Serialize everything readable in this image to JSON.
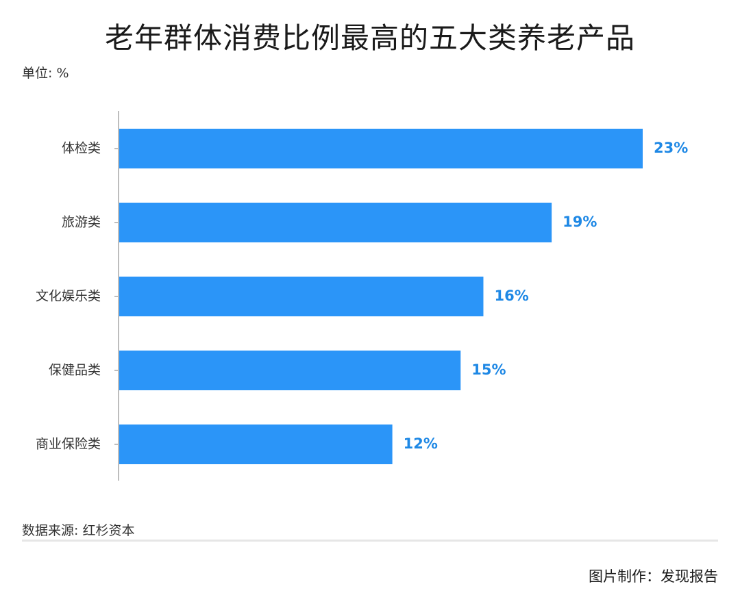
{
  "title": "老年群体消费比例最高的五大类养老产品",
  "unit": "单位: %",
  "source": "数据来源: 红杉资本",
  "credit": "图片制作：发现报告",
  "colors": {
    "bar": "#2b95f8",
    "label": "#1e88e5",
    "axis": "#bdbdbd"
  },
  "chart_data": {
    "type": "bar",
    "orientation": "horizontal",
    "categories": [
      "体检类",
      "旅游类",
      "文化娱乐类",
      "保健品类",
      "商业保险类"
    ],
    "values": [
      23,
      19,
      16,
      15,
      12
    ],
    "data_labels": [
      "23%",
      "19%",
      "16%",
      "15%",
      "12%"
    ],
    "title": "老年群体消费比例最高的五大类养老产品",
    "xlabel": "",
    "ylabel": "",
    "xlim": [
      0,
      23
    ],
    "grid": false,
    "legend": "none"
  }
}
